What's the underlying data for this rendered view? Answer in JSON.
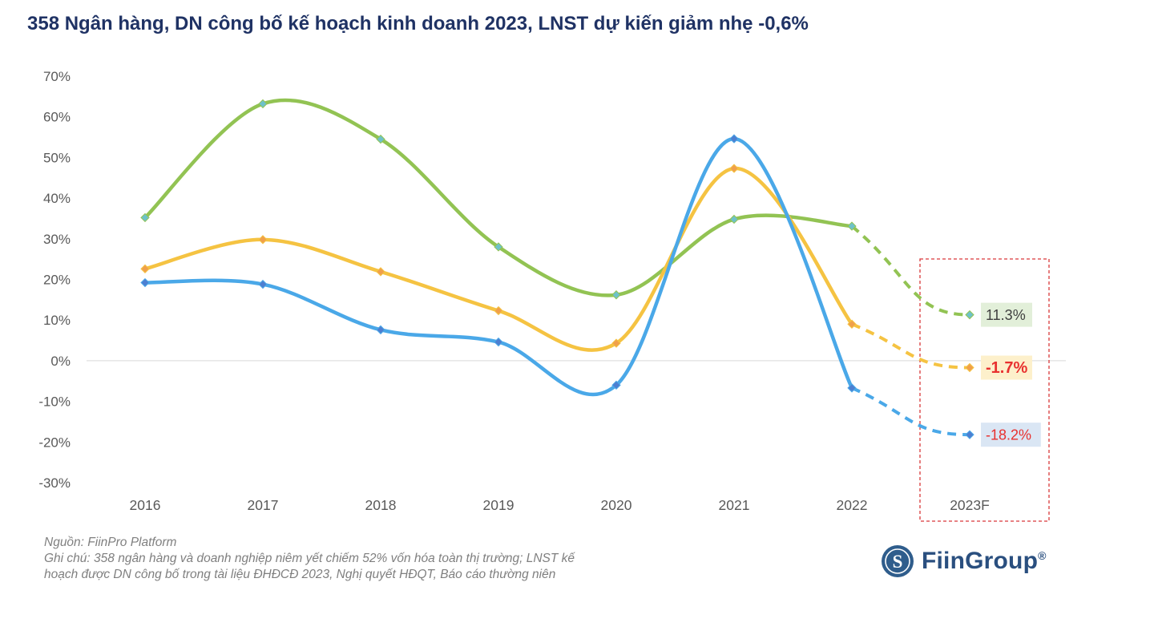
{
  "title": "358 Ngân hàng, DN công bố kế hoạch kinh doanh 2023, LNST dự kiến giảm nhẹ -0,6%",
  "chart_data": {
    "type": "line",
    "categories": [
      "2016",
      "2017",
      "2018",
      "2019",
      "2020",
      "2021",
      "2022",
      "2023F"
    ],
    "ylim": [
      -30,
      70
    ],
    "yticks": [
      -30,
      -20,
      -10,
      0,
      10,
      20,
      30,
      40,
      50,
      60,
      70
    ],
    "ytick_labels": [
      "-30%",
      "-20%",
      "-10%",
      "0%",
      "10%",
      "20%",
      "30%",
      "40%",
      "50%",
      "60%",
      "70%"
    ],
    "forecast_from_index": 6,
    "series": [
      {
        "name": "green",
        "color": "#92c353",
        "values": [
          35.2,
          63.2,
          54.5,
          28.0,
          16.2,
          34.8,
          33.1,
          11.3
        ],
        "end_label": "11.3%",
        "end_label_bg": "#e2efd9",
        "end_label_color": "#404040",
        "end_label_bold": false
      },
      {
        "name": "orange",
        "color": "#f5c342",
        "values": [
          22.6,
          29.8,
          21.9,
          12.3,
          4.3,
          47.3,
          9.0,
          -1.7
        ],
        "end_label": "-1.7%",
        "end_label_bg": "#fdf0cb",
        "end_label_color": "#e8312f",
        "end_label_bold": true
      },
      {
        "name": "blue",
        "color": "#4aa8e8",
        "values": [
          19.2,
          18.8,
          7.6,
          4.6,
          -6.0,
          54.6,
          -6.7,
          -18.2
        ],
        "end_label": "-18.2%",
        "end_label_bg": "#dae6f4",
        "end_label_color": "#e8312f",
        "end_label_bold": false
      }
    ]
  },
  "source_note": "Nguồn: FiinPro Platform",
  "footnote_line1": "Ghi chú: 358 ngân hàng và doanh nghiệp niêm yết chiếm 52% vốn hóa toàn thị trường; LNST kế",
  "footnote_line2": "hoạch được DN công bố trong tài liệu ĐHĐCĐ 2023, Nghị quyết HĐQT, Báo cáo thường niên",
  "brand": {
    "name": "FiinGroup",
    "mark": "®",
    "logo_letter": "S"
  }
}
